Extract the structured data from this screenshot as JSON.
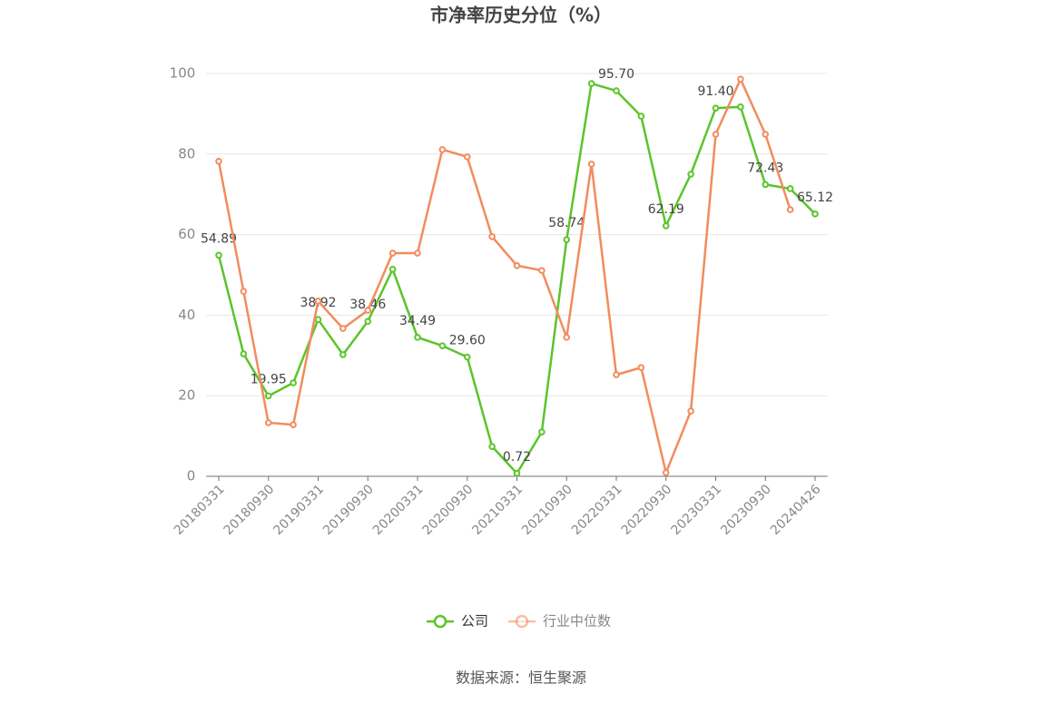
{
  "chart_data": {
    "type": "line",
    "title": "市净率历史分位（%）",
    "source": "数据来源：恒生聚源",
    "categories": [
      "20180331",
      null,
      "20180930",
      null,
      "20190331",
      null,
      "20190930",
      null,
      "20200331",
      null,
      "20200930",
      null,
      "20210331",
      null,
      "20210930",
      null,
      "20220331",
      null,
      "20220930",
      null,
      "20230331",
      null,
      "20230930",
      null,
      "20240426"
    ],
    "series": [
      {
        "name": "公司",
        "color": "#5cc42a",
        "values": [
          54.89,
          30.4,
          19.95,
          23.2,
          38.92,
          30.2,
          38.46,
          51.4,
          34.49,
          32.4,
          29.6,
          7.4,
          0.72,
          11.0,
          58.74,
          97.5,
          95.7,
          89.4,
          62.19,
          75.0,
          91.4,
          91.7,
          72.43,
          71.4,
          65.12
        ],
        "value_labels": [
          "54.89",
          null,
          "19.95",
          null,
          "38.92",
          null,
          "38.46",
          null,
          "34.49",
          null,
          "29.60",
          null,
          "0.72",
          null,
          "58.74",
          null,
          "95.70",
          null,
          "62.19",
          null,
          "91.40",
          null,
          "72.43",
          null,
          "65.12"
        ]
      },
      {
        "name": "行业中位数",
        "color": "#f28c5e",
        "values": [
          78.2,
          45.9,
          13.3,
          12.8,
          43.5,
          36.7,
          41.2,
          55.4,
          55.4,
          81.1,
          79.3,
          59.5,
          52.3,
          51.1,
          34.5,
          77.5,
          25.2,
          27.0,
          0.9,
          16.2,
          84.9,
          98.6,
          84.9,
          66.2,
          null
        ]
      }
    ],
    "ylim": [
      0,
      100
    ],
    "yticks": [
      0,
      20,
      40,
      60,
      80,
      100
    ],
    "grid": true,
    "legend": "bottom"
  }
}
